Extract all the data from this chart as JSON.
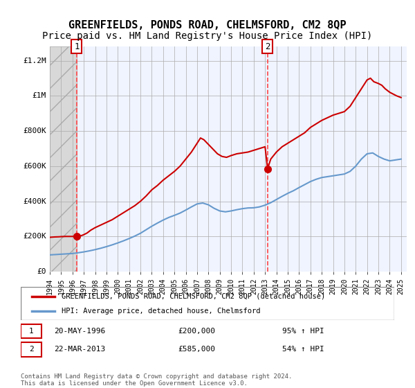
{
  "title": "GREENFIELDS, PONDS ROAD, CHELMSFORD, CM2 8QP",
  "subtitle": "Price paid vs. HM Land Registry's House Price Index (HPI)",
  "title_fontsize": 11,
  "subtitle_fontsize": 10,
  "xlim": [
    1994.0,
    2025.5
  ],
  "ylim": [
    0,
    1280000
  ],
  "yticks": [
    0,
    200000,
    400000,
    600000,
    800000,
    1000000,
    1200000
  ],
  "ytick_labels": [
    "£0",
    "£200K",
    "£400K",
    "£600K",
    "£800K",
    "£1M",
    "£1.2M"
  ],
  "xticks": [
    1994,
    1995,
    1996,
    1997,
    1998,
    1999,
    2000,
    2001,
    2002,
    2003,
    2004,
    2005,
    2006,
    2007,
    2008,
    2009,
    2010,
    2011,
    2012,
    2013,
    2014,
    2015,
    2016,
    2017,
    2018,
    2019,
    2020,
    2021,
    2022,
    2023,
    2024,
    2025
  ],
  "hatch_end_year": 1996.4,
  "marker1_x": 1996.38,
  "marker1_y": 200000,
  "marker2_x": 2013.22,
  "marker2_y": 585000,
  "red_line_color": "#cc0000",
  "blue_line_color": "#6699cc",
  "hatch_color": "#bbbbbb",
  "vline_color": "#ff4444",
  "background_plot": "#f0f4ff",
  "legend_label_red": "GREENFIELDS, PONDS ROAD, CHELMSFORD, CM2 8QP (detached house)",
  "legend_label_blue": "HPI: Average price, detached house, Chelmsford",
  "annotation1_label": "1",
  "annotation1_date": "20-MAY-1996",
  "annotation1_price": "£200,000",
  "annotation1_hpi": "95% ↑ HPI",
  "annotation2_label": "2",
  "annotation2_date": "22-MAR-2013",
  "annotation2_price": "£585,000",
  "annotation2_hpi": "54% ↑ HPI",
  "footer": "Contains HM Land Registry data © Crown copyright and database right 2024.\nThis data is licensed under the Open Government Licence v3.0.",
  "red_x": [
    1994.0,
    1994.2,
    1994.4,
    1994.6,
    1994.8,
    1995.0,
    1995.2,
    1995.4,
    1995.6,
    1995.8,
    1996.0,
    1996.2,
    1996.38,
    1996.6,
    1996.8,
    1997.0,
    1997.3,
    1997.6,
    1998.0,
    1998.5,
    1999.0,
    1999.5,
    2000.0,
    2000.5,
    2001.0,
    2001.5,
    2002.0,
    2002.5,
    2003.0,
    2003.5,
    2004.0,
    2004.5,
    2005.0,
    2005.5,
    2006.0,
    2006.5,
    2007.0,
    2007.3,
    2007.6,
    2007.9,
    2008.2,
    2008.5,
    2008.8,
    2009.2,
    2009.6,
    2010.0,
    2010.5,
    2011.0,
    2011.5,
    2012.0,
    2012.5,
    2013.0,
    2013.22,
    2013.5,
    2014.0,
    2014.5,
    2015.0,
    2015.5,
    2016.0,
    2016.5,
    2017.0,
    2017.5,
    2018.0,
    2018.5,
    2019.0,
    2019.5,
    2020.0,
    2020.5,
    2021.0,
    2021.5,
    2022.0,
    2022.3,
    2022.6,
    2023.0,
    2023.3,
    2023.6,
    2024.0,
    2024.3,
    2024.6,
    2025.0
  ],
  "red_y": [
    195000,
    196000,
    197000,
    197500,
    198000,
    199000,
    199500,
    200000,
    200000,
    200000,
    200000,
    200000,
    200000,
    202000,
    205000,
    210000,
    220000,
    235000,
    250000,
    265000,
    280000,
    295000,
    315000,
    335000,
    355000,
    375000,
    400000,
    430000,
    465000,
    490000,
    520000,
    545000,
    570000,
    600000,
    640000,
    680000,
    730000,
    760000,
    750000,
    730000,
    710000,
    690000,
    670000,
    655000,
    650000,
    660000,
    670000,
    675000,
    680000,
    690000,
    700000,
    710000,
    585000,
    640000,
    680000,
    710000,
    730000,
    750000,
    770000,
    790000,
    820000,
    840000,
    860000,
    875000,
    890000,
    900000,
    910000,
    940000,
    990000,
    1040000,
    1090000,
    1100000,
    1080000,
    1070000,
    1060000,
    1040000,
    1020000,
    1010000,
    1000000,
    990000
  ],
  "blue_x": [
    1994.0,
    1994.5,
    1995.0,
    1995.5,
    1996.0,
    1996.5,
    1997.0,
    1997.5,
    1998.0,
    1998.5,
    1999.0,
    1999.5,
    2000.0,
    2000.5,
    2001.0,
    2001.5,
    2002.0,
    2002.5,
    2003.0,
    2003.5,
    2004.0,
    2004.5,
    2005.0,
    2005.5,
    2006.0,
    2006.5,
    2007.0,
    2007.5,
    2008.0,
    2008.5,
    2009.0,
    2009.5,
    2010.0,
    2010.5,
    2011.0,
    2011.5,
    2012.0,
    2012.5,
    2013.0,
    2013.5,
    2014.0,
    2014.5,
    2015.0,
    2015.5,
    2016.0,
    2016.5,
    2017.0,
    2017.5,
    2018.0,
    2018.5,
    2019.0,
    2019.5,
    2020.0,
    2020.5,
    2021.0,
    2021.5,
    2022.0,
    2022.5,
    2023.0,
    2023.5,
    2024.0,
    2024.5,
    2025.0
  ],
  "blue_y": [
    95000,
    97000,
    99000,
    101000,
    103000,
    107000,
    112000,
    118000,
    125000,
    133000,
    142000,
    152000,
    163000,
    175000,
    188000,
    202000,
    218000,
    238000,
    258000,
    276000,
    293000,
    308000,
    320000,
    333000,
    350000,
    368000,
    385000,
    390000,
    380000,
    360000,
    345000,
    340000,
    345000,
    352000,
    358000,
    362000,
    363000,
    368000,
    378000,
    392000,
    410000,
    428000,
    445000,
    460000,
    478000,
    495000,
    512000,
    525000,
    535000,
    540000,
    545000,
    550000,
    555000,
    570000,
    600000,
    640000,
    670000,
    675000,
    655000,
    640000,
    630000,
    635000,
    640000
  ]
}
